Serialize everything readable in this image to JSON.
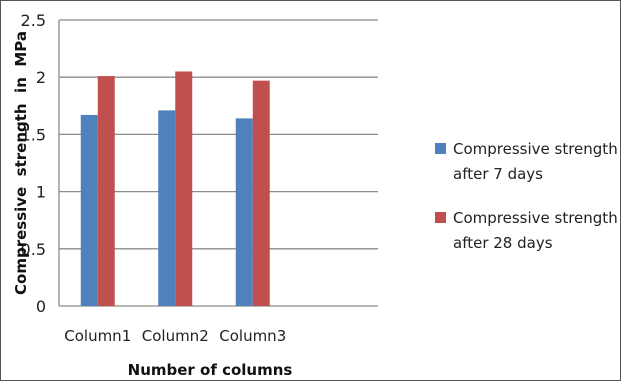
{
  "chart_data": {
    "type": "bar",
    "categories": [
      "Column1",
      "Column2",
      "Column3"
    ],
    "series": [
      {
        "name": "Compressive strength after 7 days",
        "values": [
          1.67,
          1.71,
          1.64
        ],
        "color": "#4f81bd"
      },
      {
        "name": "Compressive strength after 28 days",
        "values": [
          2.01,
          2.05,
          1.97
        ],
        "color": "#c0504d"
      }
    ],
    "xlabel": "Number of columns",
    "ylabel": "Compressive  strength  in  MPa",
    "ylim": [
      0,
      2.5
    ],
    "yticks": [
      0,
      0.5,
      1,
      1.5,
      2,
      2.5
    ],
    "grid": true,
    "legend_position": "right",
    "legend": [
      {
        "lines": [
          "Compressive strength",
          "after 7 days"
        ]
      },
      {
        "lines": [
          "Compressive strength",
          "after 28 days"
        ]
      }
    ]
  }
}
